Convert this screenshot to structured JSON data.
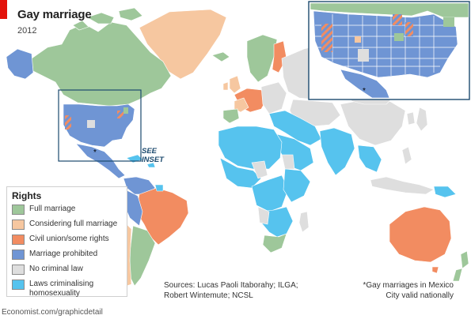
{
  "header": {
    "title": "Gay marriage",
    "subtitle": "2012"
  },
  "legend": {
    "title": "Rights",
    "items": [
      {
        "label": "Full marriage",
        "key": "full",
        "color": "#9ec79a"
      },
      {
        "label": "Considering full marriage",
        "key": "considering",
        "color": "#f6c7a0"
      },
      {
        "label": "Civil union/some rights",
        "key": "civil",
        "color": "#f28c61"
      },
      {
        "label": "Marriage prohibited",
        "key": "prohibited",
        "color": "#6f95d4"
      },
      {
        "label": "No criminal law",
        "key": "nolaw",
        "color": "#dedede"
      },
      {
        "label": "Laws criminalising homosexuality",
        "key": "criminal",
        "color": "#56c3ee"
      }
    ]
  },
  "annotations": {
    "see_inset": "SEE INSET",
    "sources": "Sources: Lucas Paoli Itaborahy; ILGA; Robert Wintemute; NCSL",
    "footnote": "*Gay marriages in Mexico City valid nationally",
    "asterisk": "*",
    "credit": "Economist.com/graphicdetail"
  },
  "colors": {
    "ocean": "#ffffff",
    "border": "#ffffff",
    "inset_frame": "#1c4a6e",
    "accent": "#e3120b"
  }
}
